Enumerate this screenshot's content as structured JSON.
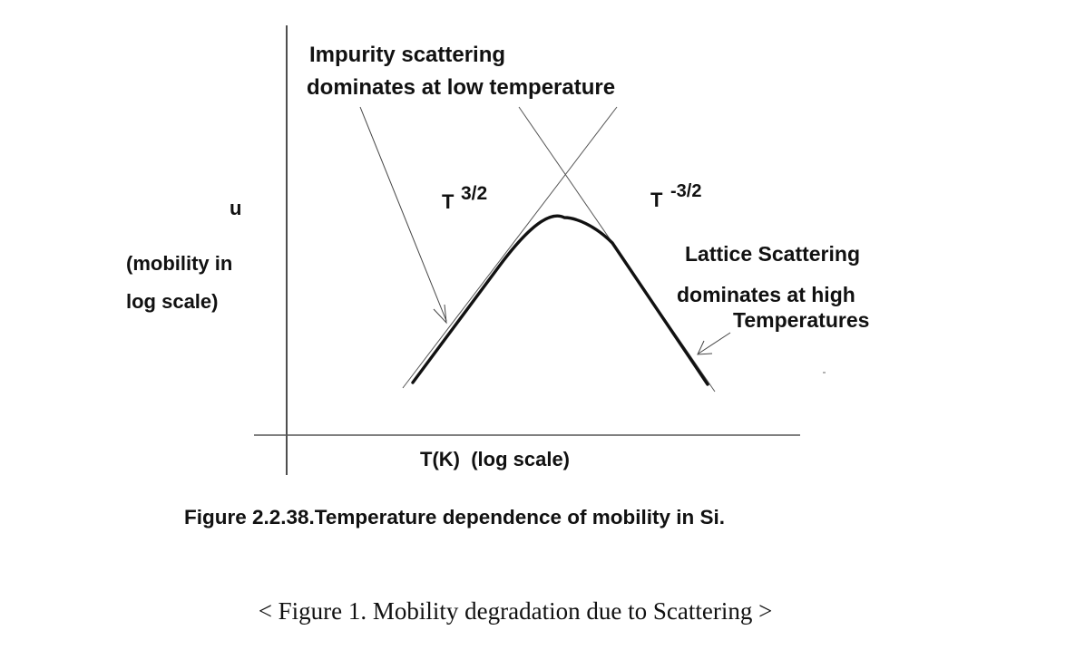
{
  "labels": {
    "impurity_line1": "Impurity scattering",
    "impurity_line2": "dominates at low temperature",
    "t_pos_base": "T",
    "t_pos_exp": "3/2",
    "t_neg_base": "T",
    "t_neg_exp": "-3/2",
    "y_symbol": "u",
    "y_desc_line1": "(mobility in",
    "y_desc_line2": "log scale)",
    "lattice_line1": "Lattice Scattering",
    "lattice_line2": "dominates at high",
    "lattice_line3": "Temperatures",
    "x_axis": "T(K)  (log scale)"
  },
  "figure_caption": "Figure 2.2.38.Temperature dependence of mobility in Si.",
  "page_caption": "< Figure 1. Mobility degradation due to Scattering >"
}
